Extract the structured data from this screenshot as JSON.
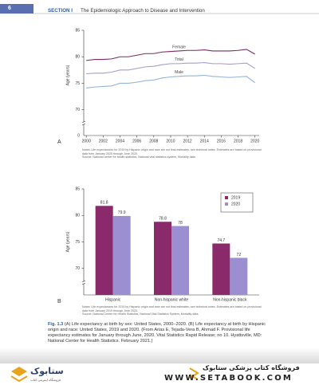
{
  "header": {
    "page_number": "6",
    "section": "SECTION I",
    "title": "The Epidemiologic Approach to Disease and Intervention"
  },
  "chart_data": [
    {
      "type": "line",
      "panel_label": "A",
      "ylabel": "Age (years)",
      "x": [
        2000,
        2001,
        2002,
        2003,
        2004,
        2005,
        2006,
        2007,
        2008,
        2009,
        2010,
        2011,
        2012,
        2013,
        2014,
        2015,
        2016,
        2017,
        2018,
        2019,
        2020
      ],
      "xlim": [
        1999.7,
        2020.5
      ],
      "xticks": [
        2000,
        2002,
        2004,
        2006,
        2008,
        2010,
        2012,
        2014,
        2016,
        2018,
        2020
      ],
      "ylim": [
        68,
        85
      ],
      "yticks": [
        70,
        75,
        80,
        85
      ],
      "axis_break": true,
      "y_origin": 0,
      "series": [
        {
          "name": "Female",
          "color": "#7b2a62",
          "values": [
            79.3,
            79.5,
            79.5,
            79.6,
            80.0,
            80.0,
            80.3,
            80.6,
            80.6,
            80.9,
            81.0,
            81.1,
            81.2,
            81.2,
            81.3,
            81.1,
            81.1,
            81.1,
            81.2,
            81.4,
            80.5
          ]
        },
        {
          "name": "Total",
          "color": "#a99ccd",
          "values": [
            76.8,
            76.9,
            76.9,
            77.1,
            77.5,
            77.5,
            77.8,
            78.1,
            78.2,
            78.5,
            78.7,
            78.7,
            78.8,
            78.8,
            78.9,
            78.7,
            78.7,
            78.6,
            78.7,
            78.8,
            77.8
          ]
        },
        {
          "name": "Male",
          "color": "#93b4dc",
          "values": [
            74.1,
            74.3,
            74.4,
            74.5,
            75.0,
            75.0,
            75.2,
            75.5,
            75.6,
            76.0,
            76.2,
            76.3,
            76.4,
            76.4,
            76.5,
            76.3,
            76.2,
            76.1,
            76.2,
            76.3,
            75.1
          ]
        }
      ],
      "notes": [
        "Notes: Life expectancies for 2019 by Hispanic origin and race are not final estimates; see technical notes. Estimates are based on provisional data from January 2020 through June 2020.",
        "Source: National center for health statistics, National vital statistics system, Mortality data."
      ]
    },
    {
      "type": "bar",
      "panel_label": "B",
      "ylabel": "Age (years)",
      "categories": [
        "Hispanic",
        "Non-hispanic white",
        "Non-hispanic black"
      ],
      "ylim": [
        65,
        85
      ],
      "yticks": [
        70,
        75,
        80,
        85
      ],
      "axis_break": true,
      "legend": "top-right",
      "series": [
        {
          "name": "2019",
          "color": "#8b2a6b",
          "values": [
            81.8,
            78.8,
            74.7
          ]
        },
        {
          "name": "2020",
          "color": "#9b8fd2",
          "values": [
            79.9,
            78.0,
            72.0
          ]
        }
      ],
      "notes": [
        "Notes: Life expectancies for 2019 by Hispanic origin and race are not final estimates; see technical notes. Estimates are based on provisional data from January 2019 through June 2020.",
        "Source: National Center for Health Statistics, National Vital Statistics System, Mortality data."
      ]
    }
  ],
  "caption": {
    "label": "Fig. 1.3",
    "text": "(A) Life expectancy at birth by sex: United States, 2000–2020. (B) Life expectancy at birth by Hispanic origin and race: United States, 2019 and 2020. (From Arias E, Tejada-Vera B, Ahmad F. Provisional life expectancy estimates for January through June, 2020. Vital Statistics Rapid Release; no 10. Hyattsville, MD: National Center for Health Statistics. February 2021.)"
  },
  "footer": {
    "logo": "ستابوک",
    "logo_sub": "فروشگاه اینترنتی کتاب",
    "store": "فروشگاه کتاب پزشکی ستابوک",
    "url": "WWW.SETABOOK.COM"
  }
}
